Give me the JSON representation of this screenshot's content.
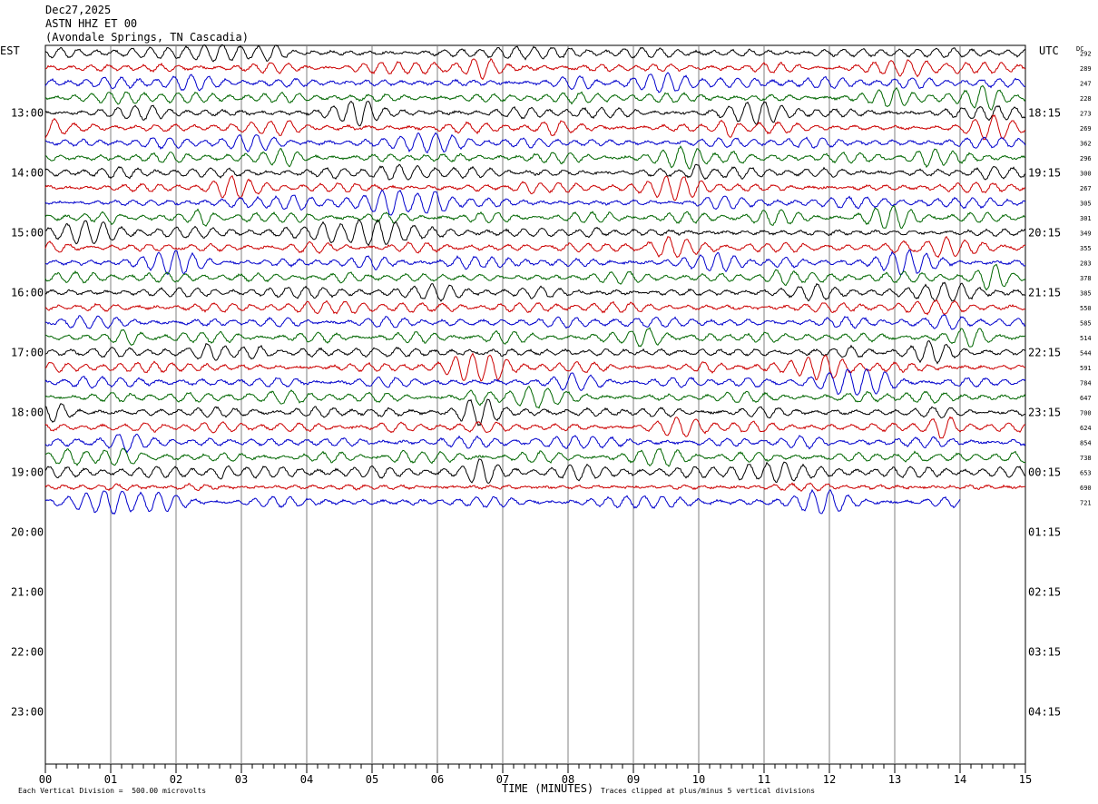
{
  "header": {
    "date": "Dec27,2025",
    "station": "ASTN HHZ ET 00",
    "location": "(Avondale Springs, TN Cascadia)"
  },
  "axis_labels": {
    "left_tz": "EST",
    "right_tz": "UTC",
    "dc_label": "DC",
    "xlabel": "TIME (MINUTES)"
  },
  "footer": {
    "scale_note": "Each Vertical Division =  500.00 microvolts",
    "clip_note": "Traces clipped at plus/minus 5 vertical divisions"
  },
  "colors": {
    "trace_cycle": [
      "#000000",
      "#cc0000",
      "#0000cc",
      "#006600"
    ],
    "grid": "#808080"
  },
  "chart_data": {
    "type": "line",
    "title": "",
    "x_ticks": [
      "00",
      "01",
      "02",
      "03",
      "04",
      "05",
      "06",
      "07",
      "08",
      "09",
      "10",
      "11",
      "12",
      "13",
      "14",
      "15"
    ],
    "x_range_minutes": [
      0,
      15
    ],
    "left_hour_labels": [
      "13:00",
      "14:00",
      "15:00",
      "16:00",
      "17:00",
      "18:00",
      "19:00",
      "20:00",
      "21:00",
      "22:00",
      "23:00"
    ],
    "right_hour_labels": [
      "18:15",
      "19:15",
      "20:15",
      "21:15",
      "22:15",
      "23:15",
      "00:15",
      "01:15",
      "02:15",
      "03:15",
      "04:15"
    ],
    "rows_per_hour": 4,
    "rows_before_first_label": 4,
    "total_row_slots": 48,
    "dc_offsets": [
      292,
      289,
      247,
      228,
      273,
      269,
      362,
      296,
      300,
      267,
      305,
      301,
      349,
      355,
      283,
      378,
      385,
      550,
      585,
      514,
      544,
      591,
      784,
      647,
      700,
      624,
      854,
      738,
      653,
      690,
      721
    ],
    "last_trace_end_minute": 14.0,
    "trace_amplitude_divisions": 1.6
  }
}
